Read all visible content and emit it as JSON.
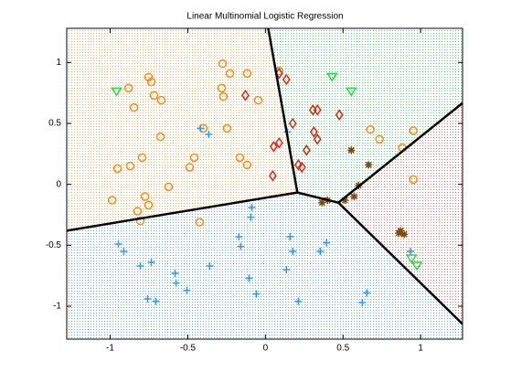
{
  "chart_data": {
    "type": "scatter",
    "title": "Linear Multinomial Logistic Regression",
    "xlim": [
      -1.28,
      1.27
    ],
    "ylim": [
      -1.27,
      1.28
    ],
    "xticks": [
      -1,
      -0.5,
      0,
      0.5,
      1
    ],
    "yticks": [
      -1,
      -0.5,
      0,
      0.5,
      1
    ],
    "regions": [
      {
        "color": "#f5a04a",
        "polygon": [
          [
            -1.28,
            -0.38
          ],
          [
            -1.28,
            1.28
          ],
          [
            0.018,
            1.28
          ],
          [
            0.206,
            -0.067
          ]
        ]
      },
      {
        "color": "#33cc66",
        "polygon": [
          [
            0.018,
            1.28
          ],
          [
            1.27,
            1.28
          ],
          [
            1.27,
            0.667
          ],
          [
            0.47,
            -0.15
          ],
          [
            0.206,
            -0.067
          ]
        ]
      },
      {
        "color": "#dd5555",
        "polygon": [
          [
            0.47,
            -0.15
          ],
          [
            1.27,
            0.667
          ],
          [
            1.27,
            -1.146
          ]
        ]
      },
      {
        "color": "#4499dd",
        "polygon": [
          [
            -1.28,
            -0.38
          ],
          [
            0.206,
            -0.067
          ],
          [
            0.47,
            -0.15
          ],
          [
            1.27,
            -1.146
          ],
          [
            1.27,
            -1.27
          ],
          [
            -1.28,
            -1.27
          ]
        ]
      }
    ],
    "boundaries": [
      [
        [
          -1.28,
          -0.38
        ],
        [
          0.206,
          -0.067
        ]
      ],
      [
        [
          0.206,
          -0.067
        ],
        [
          0.018,
          1.28
        ]
      ],
      [
        [
          0.206,
          -0.067
        ],
        [
          0.47,
          -0.15
        ]
      ],
      [
        [
          0.47,
          -0.15
        ],
        [
          1.27,
          0.667
        ]
      ],
      [
        [
          0.47,
          -0.15
        ],
        [
          1.27,
          -1.146
        ]
      ]
    ],
    "series": [
      {
        "marker": "circle",
        "color": "#f28e1e",
        "x": [
          -0.276,
          -0.229,
          -0.118,
          0.088,
          -0.753,
          -0.735,
          -0.882,
          -0.718,
          -0.671,
          -0.282,
          -0.271,
          -0.047,
          -0.847,
          -0.4,
          -0.676,
          -0.247,
          -0.459,
          -0.165,
          -0.794,
          -0.953,
          -0.488,
          -0.871,
          -0.624,
          -0.988,
          -0.776,
          -0.753,
          -0.824,
          -0.424,
          -0.806,
          -0.118,
          0.676,
          0.735,
          0.882,
          0.953,
          0.953
        ],
        "y": [
          0.99,
          0.91,
          0.91,
          0.93,
          0.88,
          0.84,
          0.79,
          0.73,
          0.69,
          0.79,
          0.72,
          0.69,
          0.63,
          0.46,
          0.39,
          0.46,
          0.22,
          0.22,
          0.22,
          0.13,
          0.14,
          0.15,
          -0.02,
          -0.13,
          -0.1,
          -0.17,
          -0.22,
          -0.31,
          -0.3,
          0.16,
          0.45,
          0.37,
          0.3,
          0.44,
          0.04
        ]
      },
      {
        "marker": "diamond",
        "color": "#d62a1a",
        "x": [
          0.088,
          0.135,
          -0.129,
          0.306,
          0.335,
          0.476,
          0.176,
          0.312,
          0.335,
          0.088,
          0.053,
          0.265,
          0.212,
          0.235,
          0.047
        ],
        "y": [
          0.91,
          0.86,
          0.73,
          0.61,
          0.61,
          0.57,
          0.5,
          0.43,
          0.37,
          0.34,
          0.31,
          0.28,
          0.16,
          0.14,
          0.07
        ]
      },
      {
        "marker": "triangle",
        "color": "#22dd44",
        "x": [
          0.429,
          0.553,
          -0.959,
          0.941,
          0.976
        ],
        "y": [
          0.88,
          0.76,
          0.76,
          -0.61,
          -0.67
        ]
      },
      {
        "marker": "star",
        "color": "#7a4a10",
        "x": [
          0.553,
          0.665,
          0.6,
          0.571,
          0.512,
          0.365,
          0.4,
          0.859,
          0.894,
          0.871
        ],
        "y": [
          0.28,
          0.16,
          -0.01,
          -0.1,
          -0.13,
          -0.15,
          -0.13,
          -0.4,
          -0.41,
          -0.38
        ]
      },
      {
        "marker": "plus",
        "color": "#3399ee",
        "x": [
          -0.418,
          -0.365,
          0.141,
          -0.088,
          -0.094,
          -0.947,
          -0.912,
          -0.171,
          -0.159,
          0.159,
          0.176,
          0.394,
          0.353,
          -0.806,
          -0.735,
          -0.582,
          -0.359,
          -0.106,
          0.135,
          -0.576,
          -0.506,
          -0.759,
          -0.706,
          -0.059,
          0.212,
          0.653,
          0.624,
          0.935
        ],
        "y": [
          0.46,
          0.41,
          0.43,
          -0.19,
          -0.27,
          -0.49,
          -0.55,
          -0.43,
          -0.51,
          -0.43,
          -0.55,
          -0.48,
          -0.55,
          -0.67,
          -0.64,
          -0.73,
          -0.67,
          -0.77,
          -0.7,
          -0.81,
          -0.87,
          -0.94,
          -0.96,
          -0.9,
          -0.96,
          -0.89,
          -0.97,
          -0.55
        ]
      }
    ]
  }
}
